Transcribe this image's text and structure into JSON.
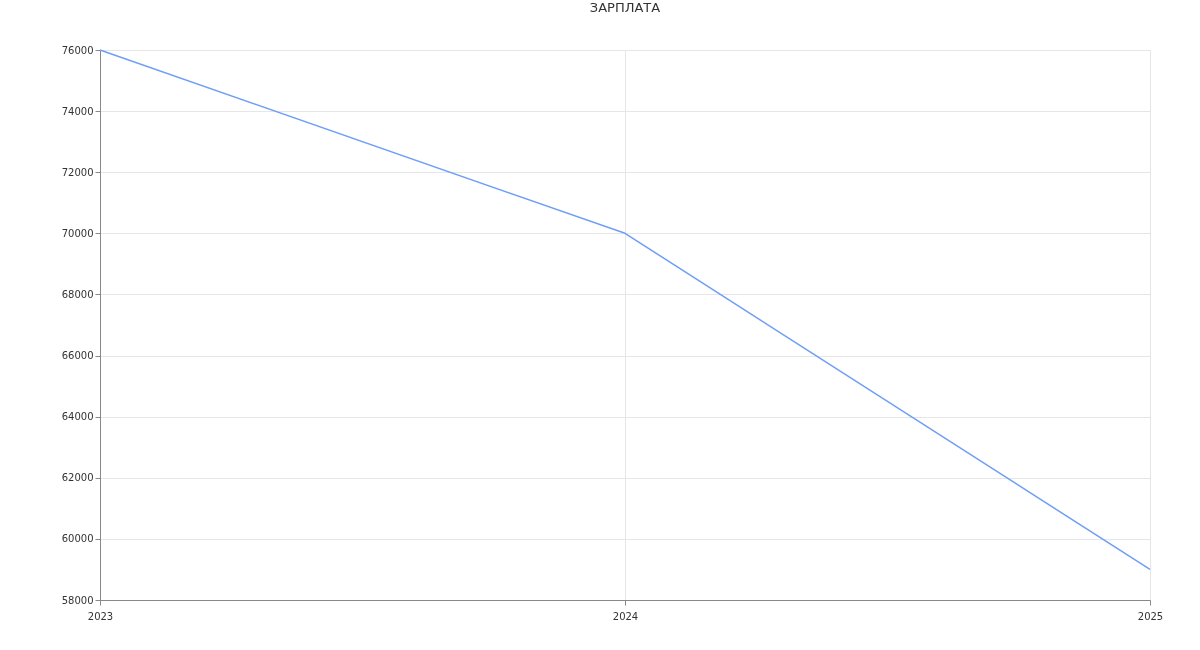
{
  "chart_data": {
    "type": "line",
    "title": "ЗАРПЛАТА",
    "x": [
      2023,
      2024,
      2025
    ],
    "series": [
      {
        "color": "#6e9ef5",
        "values": [
          76000,
          70000,
          59000
        ]
      }
    ],
    "xlim": [
      2023,
      2025
    ],
    "xticks": [
      2023,
      2024,
      2025
    ],
    "ylim": [
      58000,
      76000
    ],
    "yticks": [
      58000,
      60000,
      62000,
      64000,
      66000,
      68000,
      70000,
      72000,
      74000,
      76000
    ],
    "grid": true,
    "marker": "none",
    "line_style": "solid"
  }
}
